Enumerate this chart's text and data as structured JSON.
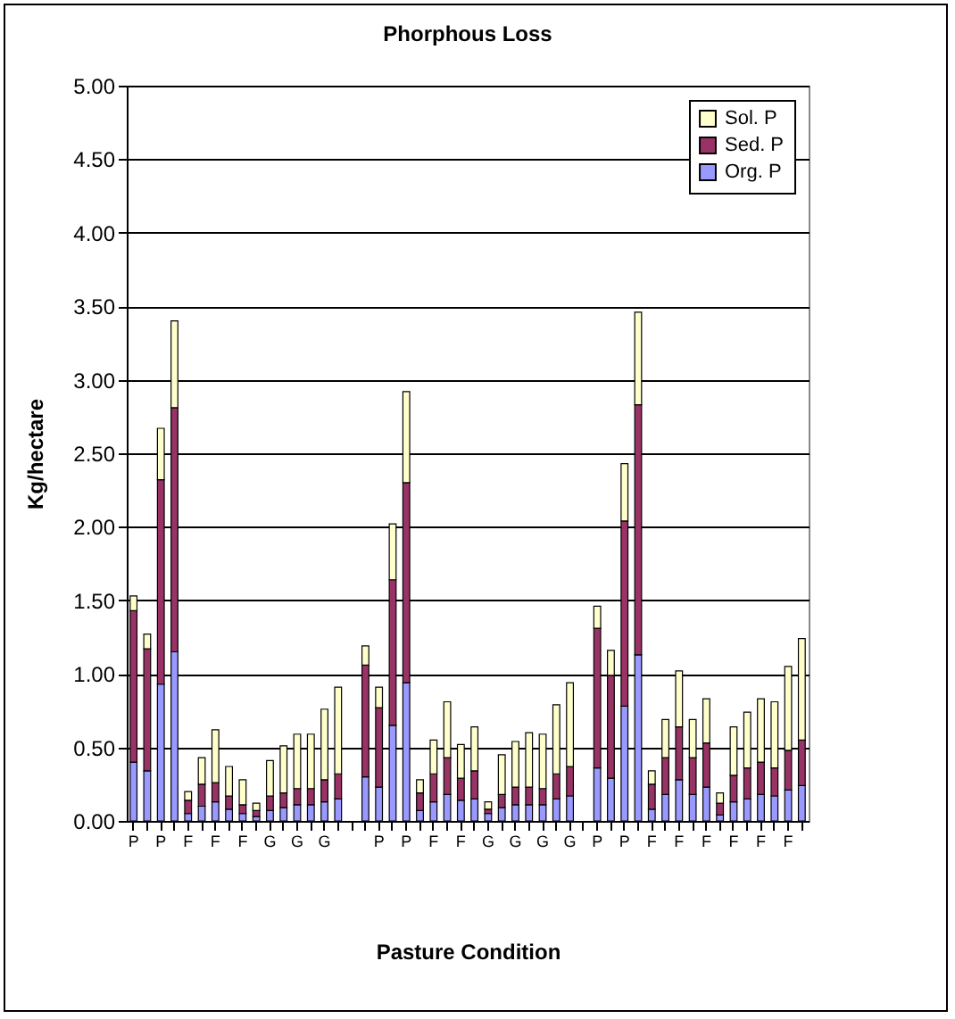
{
  "chart_data": {
    "type": "bar",
    "title": "Phorphous Loss",
    "xlabel": "Pasture Condition",
    "ylabel": "Kg/hectare",
    "categories": [
      "P",
      null,
      "P",
      null,
      "F",
      null,
      "F",
      null,
      "F",
      null,
      "G",
      null,
      "G",
      null,
      "G",
      null,
      null,
      null,
      "P",
      null,
      "P",
      null,
      "F",
      null,
      "F",
      null,
      "G",
      null,
      "G",
      null,
      "G",
      null,
      "G",
      null,
      "P",
      null,
      "P",
      null,
      "F",
      null,
      "F",
      null,
      "F",
      null,
      "F",
      null,
      "F",
      null,
      "F",
      null
    ],
    "stacked": true,
    "series": [
      {
        "name": "Org. P",
        "color": "#9999ff",
        "values": [
          0.4,
          0.34,
          0.93,
          1.15,
          0.05,
          0.1,
          0.13,
          0.08,
          0.05,
          0.03,
          0.07,
          0.09,
          0.11,
          0.11,
          0.13,
          0.15,
          null,
          0.3,
          0.23,
          0.65,
          0.94,
          0.07,
          0.13,
          0.18,
          0.14,
          0.15,
          0.05,
          0.09,
          0.11,
          0.11,
          0.11,
          0.15,
          0.17,
          null,
          0.36,
          0.29,
          0.78,
          1.13,
          0.08,
          0.18,
          0.28,
          0.18,
          0.23,
          0.04,
          0.13,
          0.15,
          0.18,
          0.17,
          0.21,
          0.24
        ]
      },
      {
        "name": "Sed. P",
        "color": "#993366",
        "values": [
          1.03,
          0.83,
          1.39,
          1.66,
          0.09,
          0.15,
          0.13,
          0.09,
          0.06,
          0.04,
          0.1,
          0.1,
          0.11,
          0.11,
          0.15,
          0.17,
          null,
          0.76,
          0.54,
          0.99,
          1.36,
          0.12,
          0.19,
          0.25,
          0.15,
          0.19,
          0.03,
          0.09,
          0.12,
          0.12,
          0.11,
          0.17,
          0.2,
          null,
          0.95,
          0.7,
          1.26,
          1.7,
          0.17,
          0.25,
          0.36,
          0.25,
          0.3,
          0.08,
          0.18,
          0.21,
          0.22,
          0.19,
          0.27,
          0.31
        ]
      },
      {
        "name": "Sol. P",
        "color": "#ffffcc",
        "values": [
          0.1,
          0.1,
          0.35,
          0.59,
          0.06,
          0.18,
          0.36,
          0.2,
          0.17,
          0.05,
          0.24,
          0.32,
          0.37,
          0.37,
          0.48,
          0.59,
          null,
          0.13,
          0.14,
          0.38,
          0.62,
          0.09,
          0.23,
          0.38,
          0.23,
          0.3,
          0.05,
          0.27,
          0.31,
          0.37,
          0.37,
          0.47,
          0.57,
          null,
          0.15,
          0.17,
          0.39,
          0.63,
          0.09,
          0.26,
          0.38,
          0.26,
          0.3,
          0.07,
          0.33,
          0.38,
          0.43,
          0.45,
          0.57,
          0.69
        ]
      }
    ],
    "ylim": [
      0,
      5
    ],
    "yticks": [
      {
        "value": 0,
        "label": "0.00"
      },
      {
        "value": 0.5,
        "label": "0.50"
      },
      {
        "value": 1,
        "label": "1.00"
      },
      {
        "value": 1.5,
        "label": "1.50"
      },
      {
        "value": 2,
        "label": "2.00"
      },
      {
        "value": 2.5,
        "label": "2.50"
      },
      {
        "value": 3,
        "label": "3.00"
      },
      {
        "value": 3.5,
        "label": "3.50"
      },
      {
        "value": 4,
        "label": "4.00"
      },
      {
        "value": 4.5,
        "label": "4.50"
      },
      {
        "value": 5,
        "label": "5.00"
      }
    ],
    "grid": "y",
    "legend": "top right"
  }
}
